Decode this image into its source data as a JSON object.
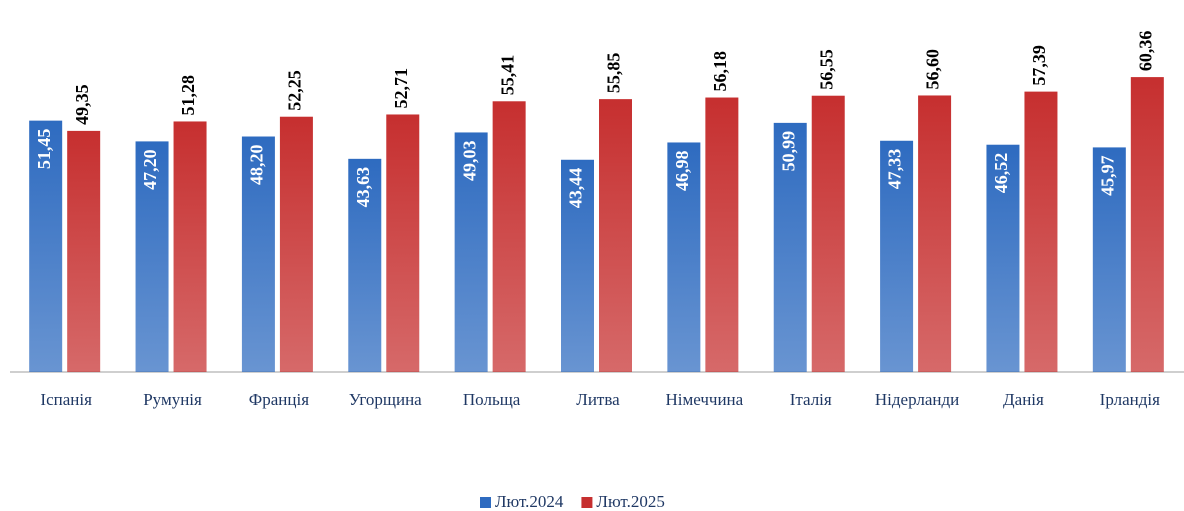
{
  "chart_data": {
    "type": "bar",
    "categories": [
      "Іспанія",
      "Румунія",
      "Франція",
      "Угорщина",
      "Польща",
      "Литва",
      "Німеччина",
      "Італія",
      "Нідерланди",
      "Данія",
      "Ірландія"
    ],
    "series": [
      {
        "name": "Лют.2024",
        "color": "#2e6bc0",
        "values": [
          51.45,
          47.2,
          48.2,
          43.63,
          49.03,
          43.44,
          46.98,
          50.99,
          47.33,
          46.52,
          45.97
        ],
        "value_labels": [
          "51,45",
          "47,20",
          "48,20",
          "43,63",
          "49,03",
          "43,44",
          "46,98",
          "50,99",
          "47,33",
          "46,52",
          "45,97"
        ]
      },
      {
        "name": "Лют.2025",
        "color": "#c62f2f",
        "values": [
          49.35,
          51.28,
          52.25,
          52.71,
          55.41,
          55.85,
          56.18,
          56.55,
          56.6,
          57.39,
          60.36
        ],
        "value_labels": [
          "49,35",
          "51,28",
          "52,25",
          "52,71",
          "55,41",
          "55,85",
          "56,18",
          "56,55",
          "56,60",
          "57,39",
          "60,36"
        ]
      }
    ],
    "ylim": [
      0,
      70
    ],
    "legend": "bottom"
  }
}
